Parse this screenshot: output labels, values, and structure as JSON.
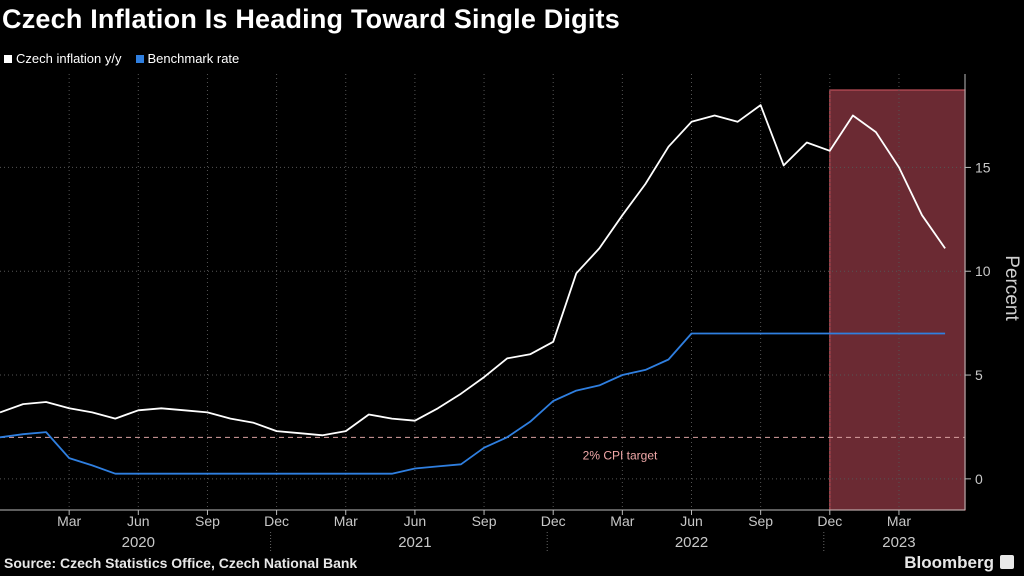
{
  "title": "Czech Inflation Is Heading Toward Single Digits",
  "source": "Source: Czech Statistics Office, Czech National Bank",
  "brand": "Bloomberg",
  "colors": {
    "background": "#000000",
    "inflation": "#ffffff",
    "benchmark": "#2f7fe0",
    "shade": "#6b2a33",
    "shade_border": "#c0505a",
    "target_line": "#d8a0a0"
  },
  "chart_data": {
    "type": "line",
    "title": "Czech Inflation Is Heading Toward Single Digits",
    "ylabel": "Percent",
    "ylim": [
      -1.5,
      19.5
    ],
    "yticks": [
      0,
      5,
      10,
      15
    ],
    "x": [
      "2019-12",
      "2020-01",
      "2020-02",
      "2020-03",
      "2020-04",
      "2020-05",
      "2020-06",
      "2020-07",
      "2020-08",
      "2020-09",
      "2020-10",
      "2020-11",
      "2020-12",
      "2021-01",
      "2021-02",
      "2021-03",
      "2021-04",
      "2021-05",
      "2021-06",
      "2021-07",
      "2021-08",
      "2021-09",
      "2021-10",
      "2021-11",
      "2021-12",
      "2022-01",
      "2022-02",
      "2022-03",
      "2022-04",
      "2022-05",
      "2022-06",
      "2022-07",
      "2022-08",
      "2022-09",
      "2022-10",
      "2022-11",
      "2022-12",
      "2023-01",
      "2023-02",
      "2023-03",
      "2023-04",
      "2023-05"
    ],
    "series": [
      {
        "name": "Czech inflation y/y",
        "values": [
          3.2,
          3.6,
          3.7,
          3.4,
          3.2,
          2.9,
          3.3,
          3.4,
          3.3,
          3.2,
          2.9,
          2.7,
          2.3,
          2.2,
          2.1,
          2.3,
          3.1,
          2.9,
          2.8,
          3.4,
          4.1,
          4.9,
          5.8,
          6.0,
          6.6,
          9.9,
          11.1,
          12.7,
          14.2,
          16.0,
          17.2,
          17.5,
          17.2,
          18.0,
          15.1,
          16.2,
          15.8,
          17.5,
          16.7,
          15.0,
          12.7,
          11.1
        ]
      },
      {
        "name": "Benchmark rate",
        "values": [
          2.0,
          2.15,
          2.25,
          1.0,
          0.65,
          0.25,
          0.25,
          0.25,
          0.25,
          0.25,
          0.25,
          0.25,
          0.25,
          0.25,
          0.25,
          0.25,
          0.25,
          0.25,
          0.5,
          0.6,
          0.7,
          1.5,
          2.0,
          2.75,
          3.75,
          4.25,
          4.5,
          5.0,
          5.25,
          5.75,
          7.0,
          7.0,
          7.0,
          7.0,
          7.0,
          7.0,
          7.0,
          7.0,
          7.0,
          7.0,
          7.0,
          7.0
        ]
      }
    ],
    "reference_line": {
      "value": 2,
      "label": "2% CPI target"
    },
    "shaded_region": {
      "from": "2022-12",
      "to": "2023-05"
    },
    "month_ticks": [
      {
        "x": "2020-03",
        "label": "Mar"
      },
      {
        "x": "2020-06",
        "label": "Jun"
      },
      {
        "x": "2020-09",
        "label": "Sep"
      },
      {
        "x": "2020-12",
        "label": "Dec"
      },
      {
        "x": "2021-03",
        "label": "Mar"
      },
      {
        "x": "2021-06",
        "label": "Jun"
      },
      {
        "x": "2021-09",
        "label": "Sep"
      },
      {
        "x": "2021-12",
        "label": "Dec"
      },
      {
        "x": "2022-03",
        "label": "Mar"
      },
      {
        "x": "2022-06",
        "label": "Jun"
      },
      {
        "x": "2022-09",
        "label": "Sep"
      },
      {
        "x": "2022-12",
        "label": "Dec"
      },
      {
        "x": "2023-03",
        "label": "Mar"
      }
    ],
    "year_labels": [
      {
        "x": "2020-06",
        "label": "2020"
      },
      {
        "x": "2021-06",
        "label": "2021"
      },
      {
        "x": "2022-06",
        "label": "2022"
      },
      {
        "x": "2023-03",
        "label": "2023"
      }
    ],
    "year_separators": [
      "2020-12",
      "2021-12",
      "2022-12"
    ],
    "legend": "top-left",
    "grid": true
  }
}
